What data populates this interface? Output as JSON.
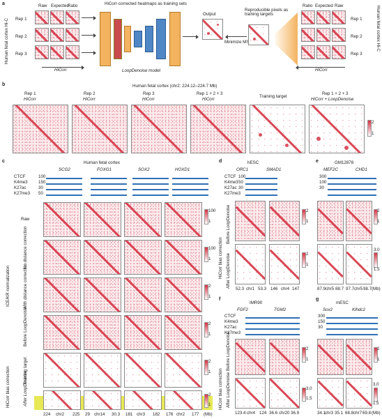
{
  "panel_a": {
    "letter": "a",
    "left_side_label": "Human fetal cortex Hi-C",
    "right_side_label": "Human fetal cortex Hi-C",
    "left_cols": [
      "Raw",
      "Expected",
      "Ratio"
    ],
    "right_cols": [
      "Ratio",
      "Expected",
      "Raw"
    ],
    "reps": [
      "Rep 1",
      "Rep 2",
      "Rep 3"
    ],
    "title": "HiCorr-corrected heatmaps as training sets",
    "model": "LoopDenoise model",
    "output": "Output",
    "targets": "Reproducible pixels as training targets",
    "minimize": "Minimize MSE",
    "hicorr_left": "HiCorr",
    "hicorr_right": "HiCorr"
  },
  "panel_b": {
    "letter": "b",
    "title": "Human fetal cortex (chr2: 224.12–224.7 Mb)",
    "maps": [
      {
        "l1": "Rep 1",
        "l2": "HiCorr"
      },
      {
        "l1": "Rep 2",
        "l2": "HiCorr"
      },
      {
        "l1": "Rep 3",
        "l2": "HiCorr"
      },
      {
        "l1": "Rep 1 + 2 + 3",
        "l2": "HiCorr"
      },
      {
        "l1": "Training target",
        "l2": ""
      },
      {
        "l1": "Rep 1 + 2 + 3",
        "l2": "HiCorr + LoopDenoise"
      }
    ],
    "cbar": [
      "2",
      "1"
    ]
  },
  "panel_c": {
    "letter": "c",
    "title": "Human fetal cortex",
    "genes": [
      "SCG2",
      "FOXG1",
      "SOX2",
      "HOXD1"
    ],
    "tracks": [
      "CTCF",
      "K4me3",
      "K27ac",
      "K27me3"
    ],
    "track_scales": [
      "100",
      "150",
      "30",
      "50",
      "100",
      "150",
      "30",
      "50",
      "100",
      "150",
      "30",
      "50",
      "100",
      "150",
      "30",
      "50"
    ],
    "rows": [
      "Raw",
      "No distance correction",
      "With distance correction",
      "Before LoopDenoise",
      "Training target",
      "After LoopDenoise"
    ],
    "group_ice": "ICE/KR normalization",
    "group_hicorr": "HiCorr bias correction",
    "cbars": [
      "100",
      "1",
      "100",
      "1",
      "2",
      "1",
      "2",
      "1",
      "2",
      "1",
      "2",
      "1"
    ],
    "axis": [
      "224",
      "chr2",
      "225",
      "29",
      "chr14",
      "30.3",
      "181",
      "chr3",
      "182",
      "176",
      "chr2",
      "177",
      "(Mb)"
    ]
  },
  "panel_d": {
    "letter": "d",
    "title": "hESC",
    "genes": [
      "ORC1",
      "SMAD1"
    ],
    "tracks": [
      "CTCF",
      "K4me3",
      "K27ac",
      "K27me3"
    ],
    "scales": [
      "100",
      "50",
      "30"
    ],
    "rows": [
      "Before LoopDenoise",
      "After LoopDenoise"
    ],
    "group": "HiCorr bias correction",
    "cbars": [
      "2",
      "1",
      "2",
      "1"
    ],
    "axis": [
      "52.3",
      "chr1",
      "53.3",
      "146",
      "chr4",
      "147"
    ]
  },
  "panel_e": {
    "letter": "e",
    "title": "GM12878",
    "genes": [
      "MEF2C",
      "CHD1"
    ],
    "scales": [
      "300",
      "100",
      "30"
    ],
    "cbars": [
      "2",
      "1",
      "3.0",
      "1.5"
    ],
    "axis": [
      "87.9",
      "chr5",
      "88.7",
      "97.7",
      "chr5",
      "98.7",
      "(Mb)"
    ]
  },
  "panel_f": {
    "letter": "f",
    "title": "IMR90",
    "genes": [
      "FGF2",
      "TGM2"
    ],
    "tracks": [
      "CTCF",
      "K4me3",
      "K27ac",
      "K27me3"
    ],
    "rows": [
      "Before LoopDenoise",
      "After LoopDenoise"
    ],
    "group": "HiCorr bias correction",
    "cbars": [
      "2",
      "1",
      "3.0",
      "1.5"
    ],
    "axis": [
      "123.4",
      "chr4",
      "124",
      "36.6",
      "chr20",
      "36.9"
    ]
  },
  "panel_g": {
    "letter": "g",
    "title": "mESC",
    "genes": [
      "Sox2",
      "Klhdc2"
    ],
    "scales": [
      "300",
      "150",
      "30"
    ],
    "cbars": [
      "2",
      "1",
      "3.0",
      "1.5"
    ],
    "axis": [
      "34.1",
      "chr3",
      "35.1",
      "68.8",
      "chr7",
      "69.8",
      "(Mb)"
    ]
  },
  "colors": {
    "heat": "#d53444",
    "track": "#2e6fb5",
    "highlight": "#e7e855",
    "unet_orange": "#f3b35f",
    "unet_blue": "#4f86c6",
    "unet_red": "#c94a4f"
  }
}
